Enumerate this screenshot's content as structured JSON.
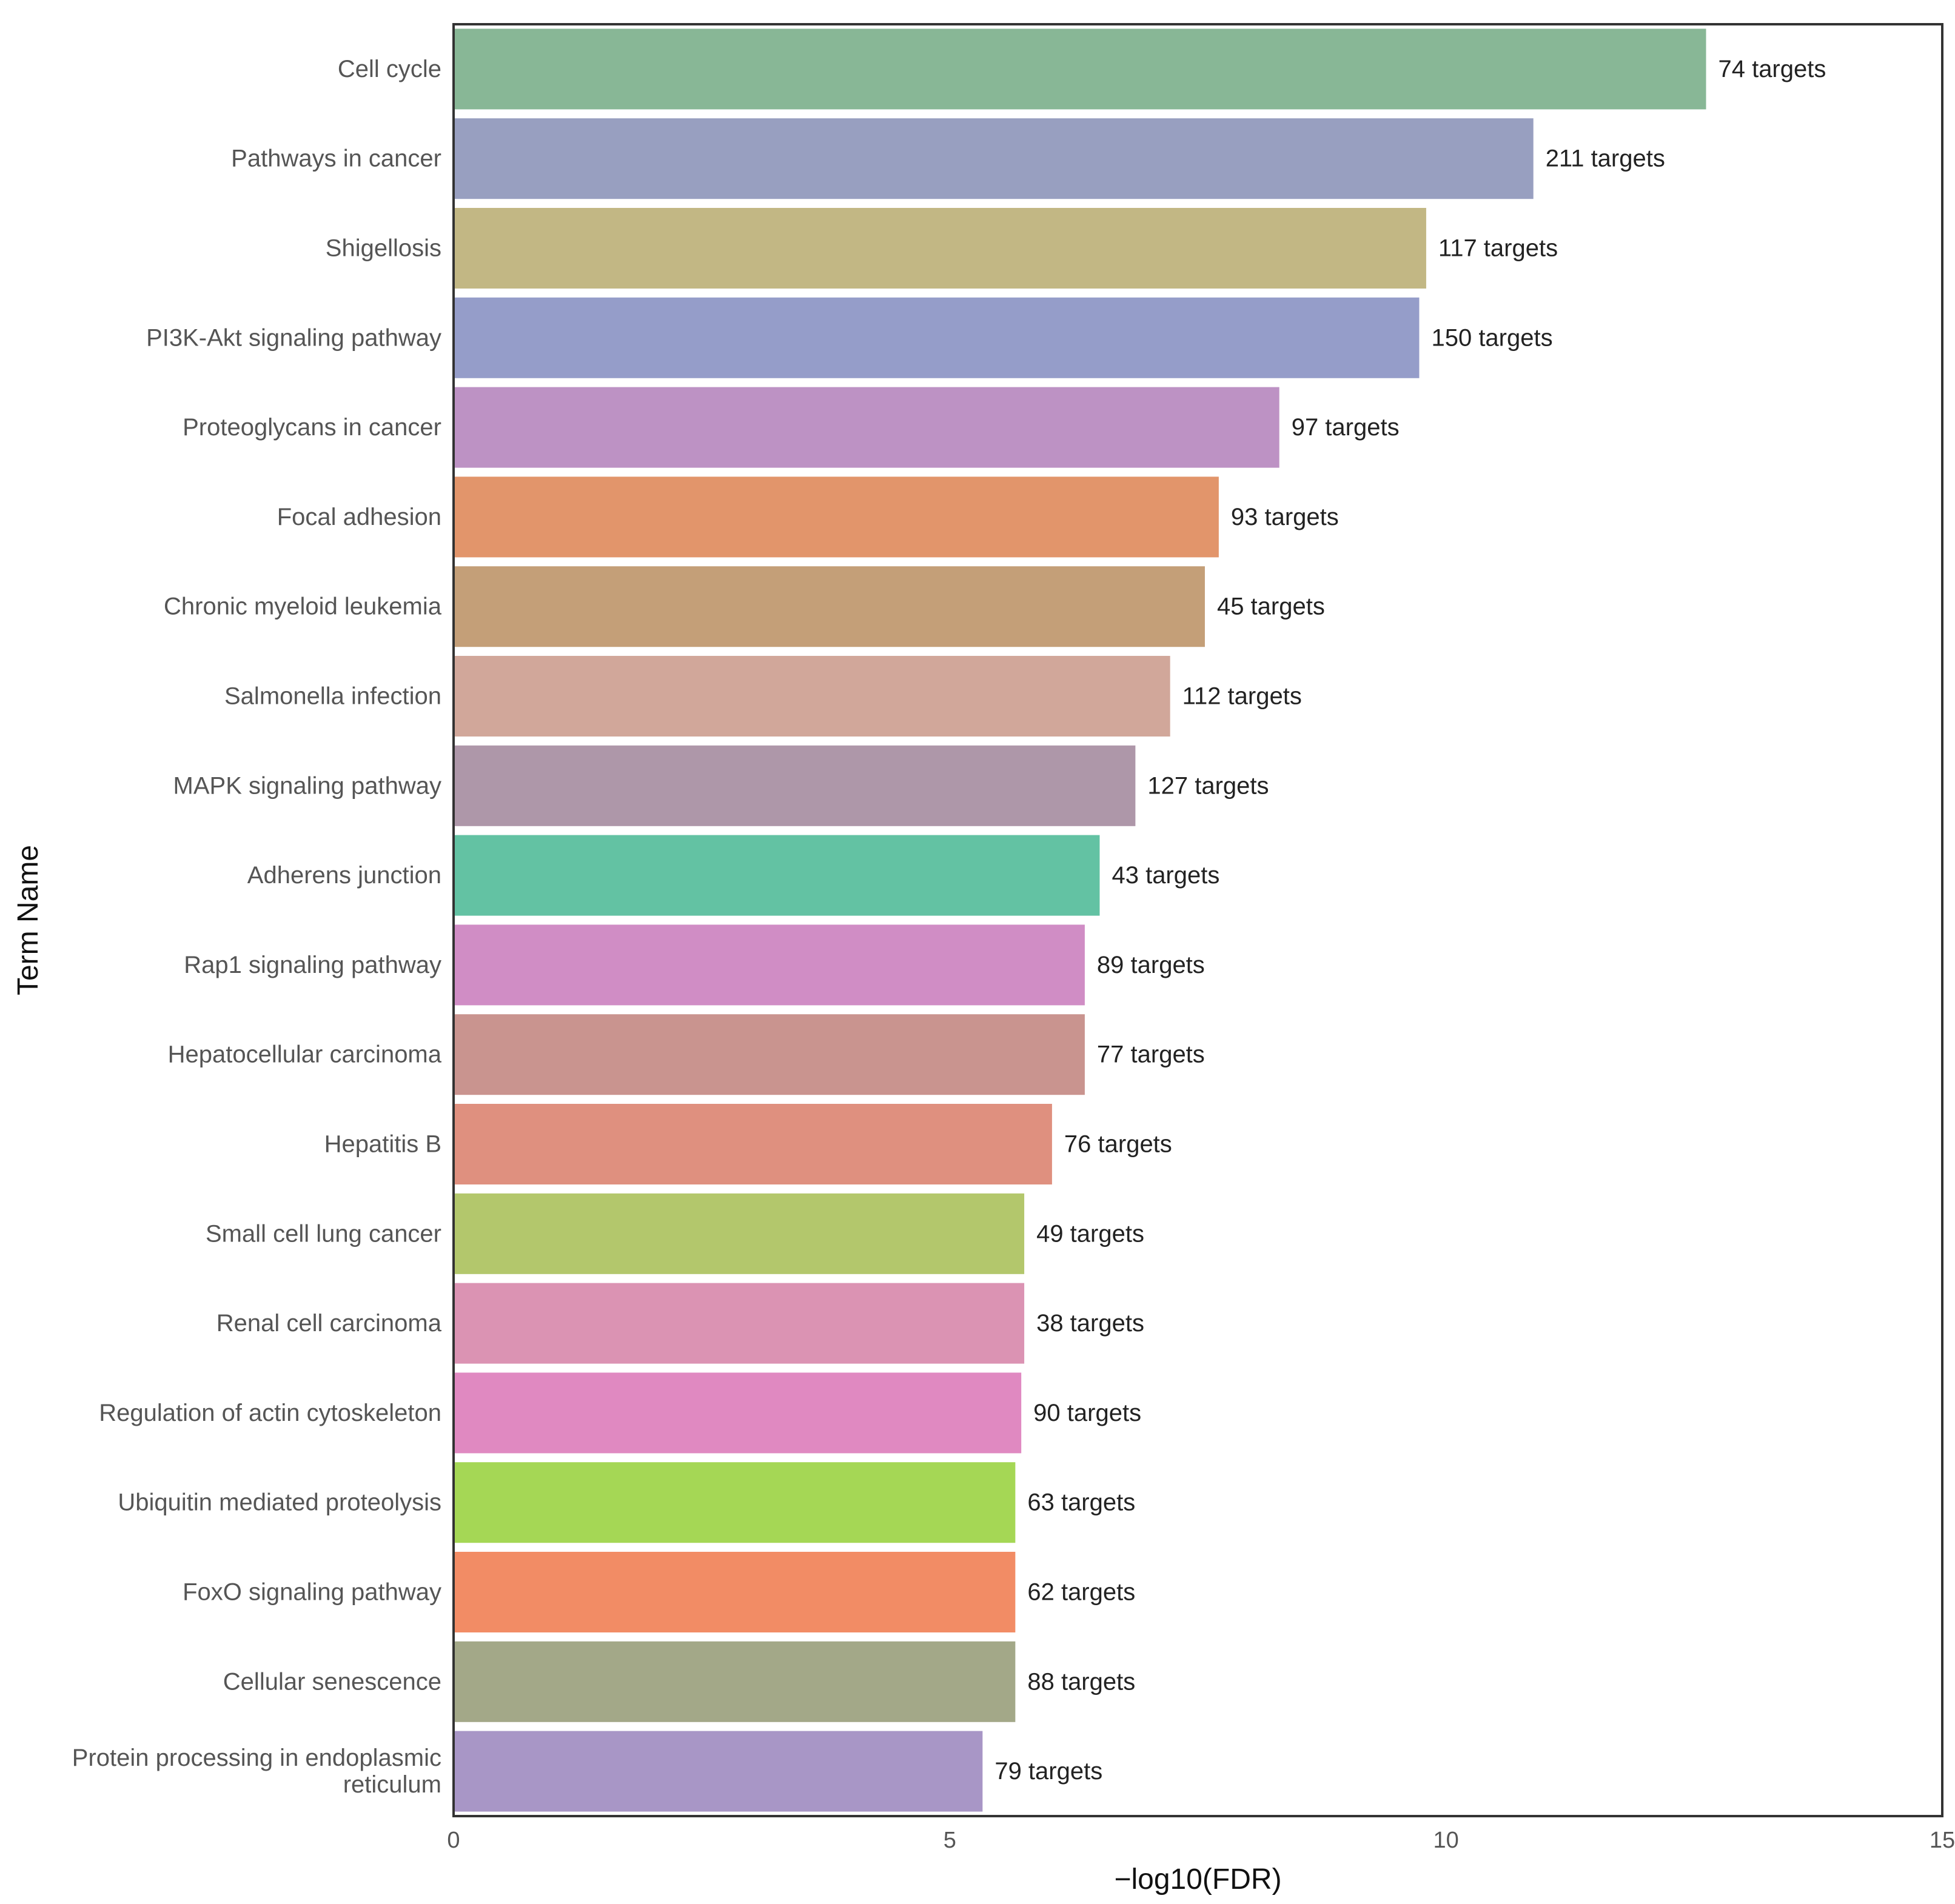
{
  "chart_data": {
    "type": "bar",
    "orientation": "horizontal",
    "xlabel": "−log10(FDR)",
    "ylabel": "Term Name",
    "xlim": [
      0,
      15
    ],
    "xticks": [
      0,
      5,
      10,
      15
    ],
    "grid": false,
    "categories": [
      "Cell cycle",
      "Pathways in cancer",
      "Shigellosis",
      "PI3K-Akt signaling pathway",
      "Proteoglycans in cancer",
      "Focal adhesion",
      "Chronic myeloid leukemia",
      "Salmonella infection",
      "MAPK signaling pathway",
      "Adherens junction",
      "Rap1 signaling pathway",
      "Hepatocellular carcinoma",
      "Hepatitis B",
      "Small cell lung cancer",
      "Renal cell carcinoma",
      "Regulation of actin cytoskeleton",
      "Ubiquitin mediated proteolysis",
      "FoxO signaling pathway",
      "Cellular senescence",
      [
        "Protein processing in endoplasmic",
        "reticulum"
      ]
    ],
    "values": [
      12.62,
      10.88,
      9.8,
      9.73,
      8.32,
      7.71,
      7.57,
      7.22,
      6.87,
      6.51,
      6.36,
      6.36,
      6.03,
      5.75,
      5.75,
      5.72,
      5.66,
      5.66,
      5.66,
      5.33
    ],
    "data_labels": [
      "74 targets",
      "211 targets",
      "117 targets",
      "150 targets",
      "97 targets",
      "93 targets",
      "45 targets",
      "112 targets",
      "127 targets",
      "43 targets",
      "89 targets",
      "77 targets",
      "76 targets",
      "49 targets",
      "38 targets",
      "90 targets",
      "63 targets",
      "62 targets",
      "88 targets",
      "79 targets"
    ],
    "colors": [
      "#88b796",
      "#989fc0",
      "#c2b784",
      "#959dc9",
      "#bd92c4",
      "#e2956b",
      "#c49f78",
      "#d1a79a",
      "#ae97a9",
      "#63c2a3",
      "#d08dc5",
      "#c9948f",
      "#df907f",
      "#b3c76c",
      "#db93b3",
      "#e089c1",
      "#a5d755",
      "#f28c65",
      "#a3a888",
      "#a896c6"
    ]
  }
}
